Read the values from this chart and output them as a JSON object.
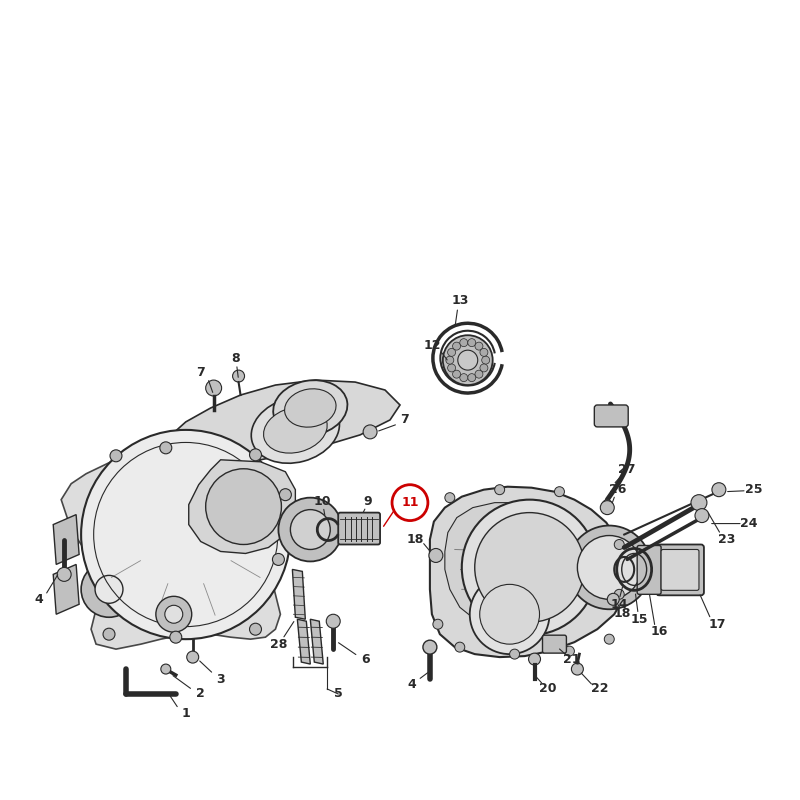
{
  "background_color": "#ffffff",
  "fig_width": 8.0,
  "fig_height": 8.0,
  "dpi": 100,
  "line_color": "#2a2a2a",
  "fill_light": "#d8d8d8",
  "fill_medium": "#c0c0c0",
  "fill_dark": "#a8a8a8",
  "highlight_color": "#cc0000",
  "highlight_number": "11",
  "label_fontsize": 9,
  "label_fontweight": "bold"
}
